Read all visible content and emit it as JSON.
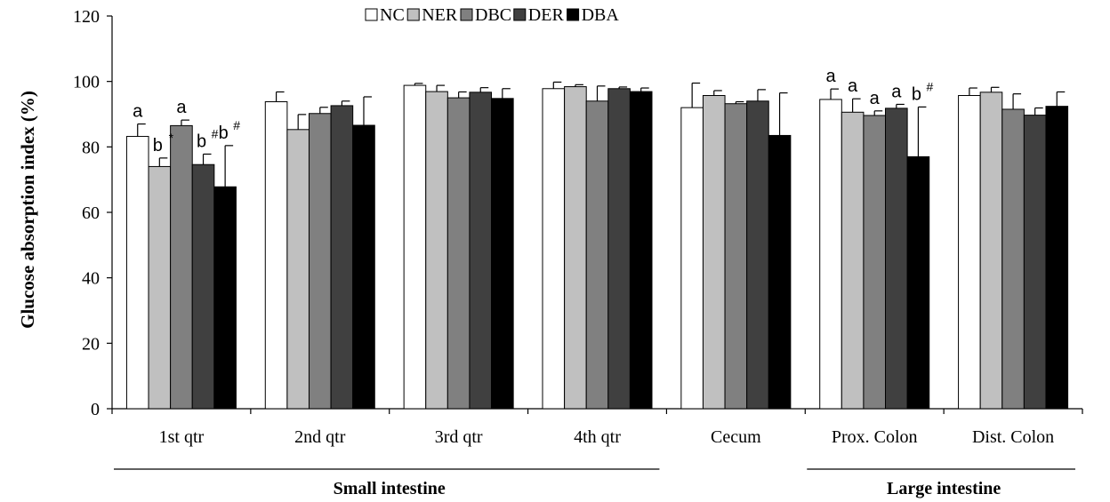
{
  "chart_data": {
    "type": "bar",
    "title": "",
    "xlabel": "",
    "ylabel": "Glucose absorption index (%)",
    "ylim": [
      0,
      120
    ],
    "yticks": [
      "0",
      "20",
      "40",
      "60",
      "80",
      "100",
      "120"
    ],
    "categories": [
      "1st qtr",
      "2nd qtr",
      "3rd qtr",
      "4th qtr",
      "Cecum",
      "Prox. Colon",
      "Dist. Colon"
    ],
    "legend_position": "top-center",
    "grid": false,
    "series": [
      {
        "name": "NC",
        "color": "#ffffff",
        "values": [
          83.2,
          93.8,
          98.8,
          97.8,
          92.0,
          94.5,
          95.7
        ],
        "errors": [
          3.8,
          3.0,
          0.6,
          2.0,
          7.5,
          3.2,
          2.3
        ]
      },
      {
        "name": "NER",
        "color": "#c0c0c0",
        "values": [
          74.0,
          85.3,
          96.9,
          98.4,
          95.7,
          90.6,
          96.7
        ],
        "errors": [
          2.6,
          4.6,
          1.9,
          0.6,
          1.5,
          4.1,
          1.5
        ]
      },
      {
        "name": "DBC",
        "color": "#808080",
        "values": [
          86.5,
          90.2,
          95.0,
          94.0,
          93.2,
          89.6,
          91.5
        ],
        "errors": [
          1.7,
          1.9,
          1.8,
          4.6,
          0.6,
          1.4,
          4.7
        ]
      },
      {
        "name": "DER",
        "color": "#404040",
        "values": [
          74.6,
          92.6,
          96.7,
          97.8,
          94.0,
          91.8,
          89.7
        ],
        "errors": [
          3.2,
          1.4,
          1.4,
          0.5,
          3.5,
          1.2,
          2.2
        ]
      },
      {
        "name": "DBA",
        "color": "#000000",
        "values": [
          67.8,
          86.6,
          94.8,
          96.9,
          83.5,
          77.0,
          92.4
        ],
        "errors": [
          12.6,
          8.7,
          3.0,
          1.1,
          13.0,
          15.2,
          4.4
        ]
      }
    ],
    "annotations": [
      {
        "category": 0,
        "series": 0,
        "text": "a",
        "sup": ""
      },
      {
        "category": 0,
        "series": 1,
        "text": "b",
        "sup": "*"
      },
      {
        "category": 0,
        "series": 2,
        "text": "a",
        "sup": ""
      },
      {
        "category": 0,
        "series": 3,
        "text": "b",
        "sup": "#"
      },
      {
        "category": 0,
        "series": 4,
        "text": "b",
        "sup": "#"
      },
      {
        "category": 5,
        "series": 0,
        "text": "a",
        "sup": ""
      },
      {
        "category": 5,
        "series": 1,
        "text": "a",
        "sup": ""
      },
      {
        "category": 5,
        "series": 2,
        "text": "a",
        "sup": ""
      },
      {
        "category": 5,
        "series": 3,
        "text": "a",
        "sup": ""
      },
      {
        "category": 5,
        "series": 4,
        "text": "b",
        "sup": "#"
      }
    ],
    "groups": [
      {
        "label": "Small intestine",
        "from": 0,
        "to": 3
      },
      {
        "label": "Large intestine",
        "from": 5,
        "to": 6
      }
    ]
  }
}
